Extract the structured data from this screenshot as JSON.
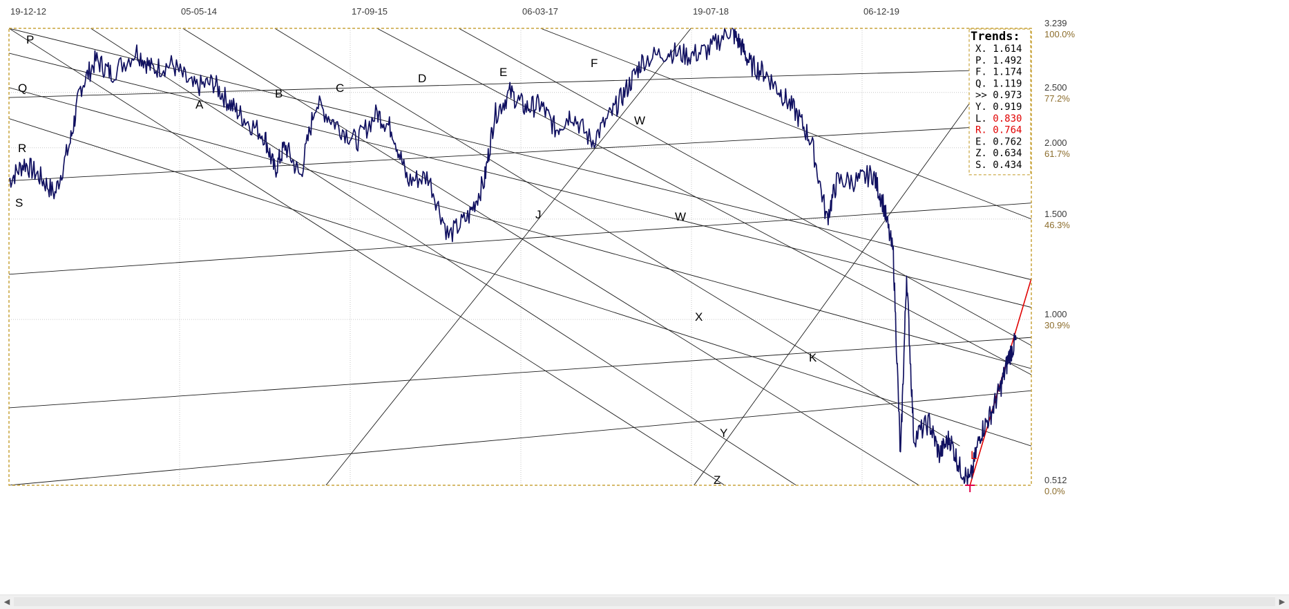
{
  "chart_data": {
    "type": "line",
    "x_ticks": [
      "19-12-12",
      "05-05-14",
      "17-09-15",
      "06-03-17",
      "19-07-18",
      "06-12-19"
    ],
    "y_ticks": [
      {
        "price": "3.239",
        "pct": "100.0%",
        "v": 3.239
      },
      {
        "price": "2.500",
        "pct": "77.2%",
        "v": 2.5
      },
      {
        "price": "2.000",
        "pct": "61.7%",
        "v": 2.0
      },
      {
        "price": "1.500",
        "pct": "46.3%",
        "v": 1.5
      },
      {
        "price": "1.000",
        "pct": "30.9%",
        "v": 1.0
      },
      {
        "price": "0.512",
        "pct": "0.0%",
        "v": 0.512
      }
    ],
    "ylim": [
      0.512,
      3.239
    ],
    "y_scale": "log",
    "grid": true,
    "legend": {
      "title": "Trends:",
      "placement": "top-right",
      "entries": [
        {
          "key": "X.",
          "value": "1.614",
          "color": "#000000"
        },
        {
          "key": "P.",
          "value": "1.492",
          "color": "#000000"
        },
        {
          "key": "F.",
          "value": "1.174",
          "color": "#000000"
        },
        {
          "key": "Q.",
          "value": "1.119",
          "color": "#000000"
        },
        {
          "key": ">>",
          "value": "0.973",
          "color": "#000000"
        },
        {
          "key": "Y.",
          "value": "0.919",
          "color": "#000000"
        },
        {
          "key": "L.",
          "value": "0.830",
          "color": "#000000",
          "value_color": "#e00000"
        },
        {
          "key": "R.",
          "value": "0.764",
          "color": "#e00000",
          "value_color": "#e00000"
        },
        {
          "key": "E.",
          "value": "0.762",
          "color": "#000000"
        },
        {
          "key": "Z.",
          "value": "0.634",
          "color": "#000000"
        },
        {
          "key": "S.",
          "value": "0.434",
          "color": "#000000"
        }
      ]
    },
    "trend_labels": [
      {
        "text": "P",
        "color": "#000000"
      },
      {
        "text": "Q",
        "color": "#000000"
      },
      {
        "text": "R",
        "color": "#000000"
      },
      {
        "text": "S",
        "color": "#000000"
      },
      {
        "text": "A",
        "color": "#000000"
      },
      {
        "text": "B",
        "color": "#000000"
      },
      {
        "text": "C",
        "color": "#000000"
      },
      {
        "text": "D",
        "color": "#000000"
      },
      {
        "text": "E",
        "color": "#000000"
      },
      {
        "text": "F",
        "color": "#000000"
      },
      {
        "text": "W",
        "color": "#000000"
      },
      {
        "text": "J",
        "color": "#000000"
      },
      {
        "text": "W",
        "color": "#000000"
      },
      {
        "text": "X",
        "color": "#000000"
      },
      {
        "text": "K",
        "color": "#000000"
      },
      {
        "text": "Y",
        "color": "#000000"
      },
      {
        "text": "Z",
        "color": "#000000"
      },
      {
        "text": "L",
        "color": "#e00000"
      }
    ],
    "price_anchors": [
      {
        "x": 0.0,
        "y": 1.75
      },
      {
        "x": 0.015,
        "y": 1.88
      },
      {
        "x": 0.03,
        "y": 1.78
      },
      {
        "x": 0.045,
        "y": 1.66
      },
      {
        "x": 0.06,
        "y": 2.05
      },
      {
        "x": 0.07,
        "y": 2.55
      },
      {
        "x": 0.085,
        "y": 2.85
      },
      {
        "x": 0.1,
        "y": 2.7
      },
      {
        "x": 0.125,
        "y": 2.95
      },
      {
        "x": 0.14,
        "y": 2.75
      },
      {
        "x": 0.16,
        "y": 2.8
      },
      {
        "x": 0.18,
        "y": 2.55
      },
      {
        "x": 0.2,
        "y": 2.6
      },
      {
        "x": 0.215,
        "y": 2.4
      },
      {
        "x": 0.23,
        "y": 2.25
      },
      {
        "x": 0.25,
        "y": 2.1
      },
      {
        "x": 0.26,
        "y": 1.82
      },
      {
        "x": 0.27,
        "y": 2.02
      },
      {
        "x": 0.285,
        "y": 1.78
      },
      {
        "x": 0.3,
        "y": 2.4
      },
      {
        "x": 0.32,
        "y": 2.2
      },
      {
        "x": 0.34,
        "y": 2.05
      },
      {
        "x": 0.36,
        "y": 2.3
      },
      {
        "x": 0.375,
        "y": 2.15
      },
      {
        "x": 0.39,
        "y": 1.75
      },
      {
        "x": 0.41,
        "y": 1.78
      },
      {
        "x": 0.43,
        "y": 1.4
      },
      {
        "x": 0.45,
        "y": 1.52
      },
      {
        "x": 0.465,
        "y": 1.75
      },
      {
        "x": 0.475,
        "y": 2.28
      },
      {
        "x": 0.49,
        "y": 2.5
      },
      {
        "x": 0.505,
        "y": 2.35
      },
      {
        "x": 0.52,
        "y": 2.38
      },
      {
        "x": 0.535,
        "y": 2.15
      },
      {
        "x": 0.55,
        "y": 2.3
      },
      {
        "x": 0.57,
        "y": 2.05
      },
      {
        "x": 0.59,
        "y": 2.3
      },
      {
        "x": 0.605,
        "y": 2.55
      },
      {
        "x": 0.62,
        "y": 2.85
      },
      {
        "x": 0.645,
        "y": 2.95
      },
      {
        "x": 0.665,
        "y": 2.9
      },
      {
        "x": 0.685,
        "y": 2.97
      },
      {
        "x": 0.705,
        "y": 3.22
      },
      {
        "x": 0.715,
        "y": 3.05
      },
      {
        "x": 0.725,
        "y": 2.8
      },
      {
        "x": 0.74,
        "y": 2.7
      },
      {
        "x": 0.755,
        "y": 2.5
      },
      {
        "x": 0.77,
        "y": 2.3
      },
      {
        "x": 0.785,
        "y": 2.05
      },
      {
        "x": 0.8,
        "y": 1.5
      },
      {
        "x": 0.81,
        "y": 1.75
      },
      {
        "x": 0.83,
        "y": 1.75
      },
      {
        "x": 0.845,
        "y": 1.8
      },
      {
        "x": 0.855,
        "y": 1.6
      },
      {
        "x": 0.865,
        "y": 1.3
      },
      {
        "x": 0.872,
        "y": 0.57
      },
      {
        "x": 0.878,
        "y": 1.2
      },
      {
        "x": 0.885,
        "y": 0.62
      },
      {
        "x": 0.9,
        "y": 0.66
      },
      {
        "x": 0.91,
        "y": 0.58
      },
      {
        "x": 0.92,
        "y": 0.62
      },
      {
        "x": 0.93,
        "y": 0.55
      },
      {
        "x": 0.94,
        "y": 0.52
      },
      {
        "x": 0.95,
        "y": 0.63
      },
      {
        "x": 0.96,
        "y": 0.68
      },
      {
        "x": 0.97,
        "y": 0.76
      },
      {
        "x": 0.978,
        "y": 0.86
      },
      {
        "x": 0.985,
        "y": 0.92
      }
    ],
    "trendlines": [
      {
        "x1": 0.0,
        "y1": 3.239,
        "x2": 1.0,
        "y2": 1.174
      },
      {
        "x1": 0.0,
        "y1": 2.93,
        "x2": 1.0,
        "y2": 1.05
      },
      {
        "x1": 0.0,
        "y1": 2.55,
        "x2": 1.0,
        "y2": 0.82
      },
      {
        "x1": 0.0,
        "y1": 2.25,
        "x2": 1.0,
        "y2": 0.6
      },
      {
        "x1": 0.08,
        "y1": 3.239,
        "x2": 0.77,
        "y2": 0.512
      },
      {
        "x1": 0.17,
        "y1": 3.239,
        "x2": 0.89,
        "y2": 0.512
      },
      {
        "x1": 0.26,
        "y1": 3.239,
        "x2": 0.93,
        "y2": 0.6
      },
      {
        "x1": 0.36,
        "y1": 3.239,
        "x2": 1.0,
        "y2": 0.8
      },
      {
        "x1": 0.44,
        "y1": 3.239,
        "x2": 1.0,
        "y2": 0.9
      },
      {
        "x1": 0.52,
        "y1": 3.239,
        "x2": 1.0,
        "y2": 1.5
      },
      {
        "x1": 0.0,
        "y1": 2.45,
        "x2": 1.0,
        "y2": 2.75
      },
      {
        "x1": 0.0,
        "y1": 1.75,
        "x2": 1.0,
        "y2": 2.2
      },
      {
        "x1": 0.0,
        "y1": 1.2,
        "x2": 1.0,
        "y2": 1.6
      },
      {
        "x1": 0.0,
        "y1": 0.512,
        "x2": 1.0,
        "y2": 0.75
      },
      {
        "x1": 0.0,
        "y1": 0.7,
        "x2": 1.0,
        "y2": 0.93
      },
      {
        "x1": 0.31,
        "y1": 0.512,
        "x2": 0.667,
        "y2": 3.239
      },
      {
        "x1": 0.67,
        "y1": 0.512,
        "x2": 0.94,
        "y2": 2.4
      },
      {
        "x1": 0.0,
        "y1": 3.239,
        "x2": 0.7,
        "y2": 0.512
      },
      {
        "x1": 0.94,
        "y1": 0.512,
        "x2": 1.0,
        "y2": 1.18,
        "color": "#e00000"
      }
    ]
  }
}
